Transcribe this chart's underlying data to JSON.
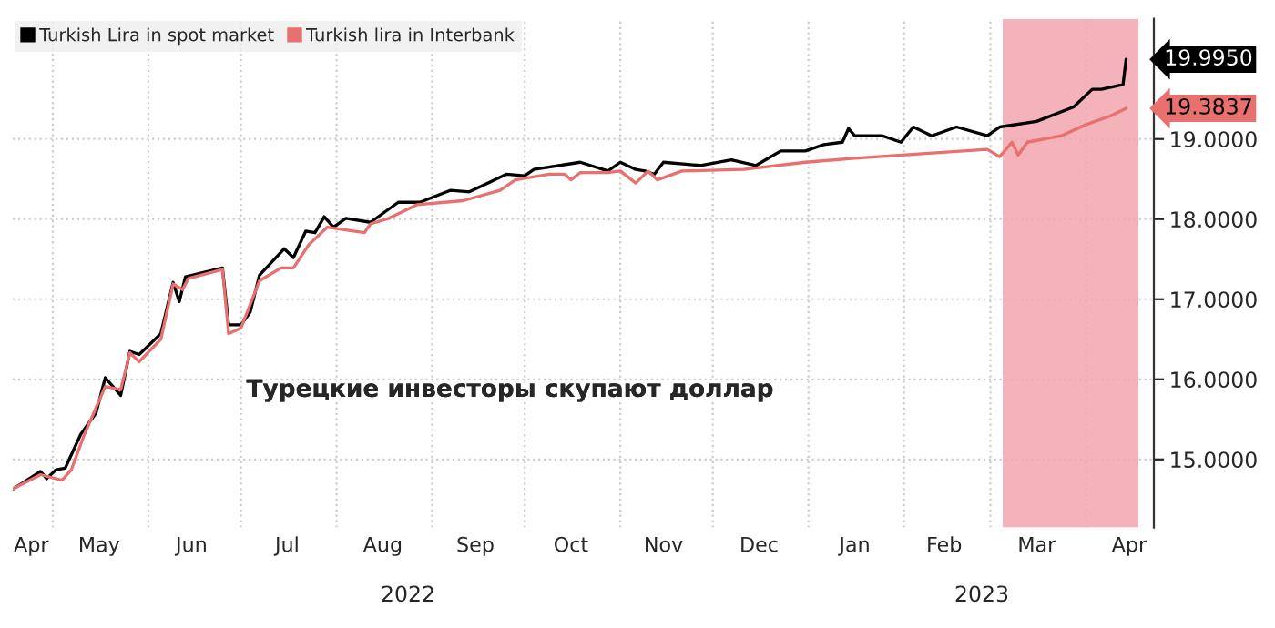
{
  "chart_data": {
    "type": "line",
    "x": [
      "2022-04-18",
      "2022-04-21",
      "2022-04-27",
      "2022-04-29",
      "2022-05-02",
      "2022-05-05",
      "2022-05-10",
      "2022-05-15",
      "2022-05-18",
      "2022-05-23",
      "2022-05-26",
      "2022-05-29",
      "2022-06-05",
      "2022-06-09",
      "2022-06-11",
      "2022-06-13",
      "2022-06-25",
      "2022-06-27",
      "2022-07-01",
      "2022-07-04",
      "2022-07-07",
      "2022-07-15",
      "2022-07-18",
      "2022-07-22",
      "2022-07-25",
      "2022-07-28",
      "2022-07-31",
      "2022-08-04",
      "2022-08-12",
      "2022-08-21",
      "2022-08-28",
      "2022-09-07",
      "2022-09-13",
      "2022-09-19",
      "2022-09-25",
      "2022-10-01",
      "2022-10-04",
      "2022-10-19",
      "2022-10-28",
      "2022-11-01",
      "2022-11-06",
      "2022-11-09",
      "2022-11-12",
      "2022-11-15",
      "2022-11-27",
      "2022-12-07",
      "2022-12-15",
      "2022-12-23",
      "2022-12-31",
      "2023-01-06",
      "2023-01-12",
      "2023-01-14",
      "2023-01-16",
      "2023-01-25",
      "2023-01-31",
      "2023-02-04",
      "2023-02-10",
      "2023-02-18",
      "2023-02-28",
      "2023-03-04",
      "2023-03-16",
      "2023-03-28",
      "2023-04-03",
      "2023-04-06",
      "2023-04-13",
      "2023-04-14"
    ],
    "series": [
      {
        "name": "Turkish Lira in spot market",
        "color": "#000000",
        "values": [
          14.63,
          14.7,
          14.85,
          14.76,
          14.87,
          14.89,
          15.31,
          15.58,
          16.02,
          15.8,
          16.35,
          16.31,
          16.57,
          17.21,
          16.97,
          17.28,
          17.39,
          16.68,
          16.68,
          16.84,
          17.3,
          17.63,
          17.52,
          17.85,
          17.83,
          18.03,
          17.9,
          18.01,
          17.96,
          18.21,
          18.21,
          18.36,
          18.34,
          18.45,
          18.56,
          18.54,
          18.62,
          18.71,
          18.6,
          18.71,
          18.62,
          18.6,
          18.56,
          18.71,
          18.67,
          18.74,
          18.67,
          18.85,
          18.85,
          18.93,
          18.96,
          19.13,
          19.04,
          19.04,
          18.96,
          19.15,
          19.04,
          19.15,
          19.04,
          19.15,
          19.22,
          19.4,
          19.62,
          19.62,
          19.68,
          19.995
        ],
        "value_labels": [
          null,
          null,
          null,
          null,
          null,
          null,
          null,
          null,
          null,
          null,
          null,
          null,
          null,
          null,
          null,
          null,
          null,
          null,
          null,
          null,
          null,
          null,
          null,
          null,
          null,
          null,
          null,
          null,
          null,
          null,
          null,
          null,
          null,
          null,
          null,
          null,
          null,
          null,
          null,
          null,
          null,
          null,
          null,
          null,
          null,
          null,
          null,
          null,
          null,
          null,
          null,
          null,
          null,
          null,
          null,
          null,
          null,
          null,
          null,
          null,
          null,
          null,
          null,
          null,
          null,
          "19.9950"
        ]
      },
      {
        "name": "Turkish lira in Interbank",
        "color": "#e8706f",
        "x": [
          "2022-04-18",
          "2022-04-27",
          "2022-05-04",
          "2022-05-07",
          "2022-05-11",
          "2022-05-18",
          "2022-05-23",
          "2022-05-26",
          "2022-05-29",
          "2022-06-05",
          "2022-06-09",
          "2022-06-12",
          "2022-06-14",
          "2022-06-25",
          "2022-06-27",
          "2022-07-01",
          "2022-07-07",
          "2022-07-14",
          "2022-07-18",
          "2022-07-23",
          "2022-07-29",
          "2022-08-10",
          "2022-08-12",
          "2022-08-18",
          "2022-08-27",
          "2022-09-11",
          "2022-09-23",
          "2022-09-28",
          "2022-10-09",
          "2022-10-14",
          "2022-10-16",
          "2022-10-19",
          "2022-10-28",
          "2022-11-01",
          "2022-11-06",
          "2022-11-10",
          "2022-11-13",
          "2022-11-21",
          "2022-12-11",
          "2022-12-31",
          "2023-01-16",
          "2023-02-08",
          "2023-02-28",
          "2023-03-04",
          "2023-03-08",
          "2023-03-10",
          "2023-03-13",
          "2023-03-24",
          "2023-04-01",
          "2023-04-09",
          "2023-04-14"
        ],
        "values": [
          14.63,
          14.81,
          14.74,
          14.87,
          15.29,
          15.91,
          15.87,
          16.33,
          16.22,
          16.5,
          17.19,
          17.12,
          17.26,
          17.37,
          16.57,
          16.64,
          17.23,
          17.39,
          17.39,
          17.68,
          17.9,
          17.83,
          17.94,
          18.01,
          18.18,
          18.23,
          18.36,
          18.49,
          18.56,
          18.56,
          18.49,
          18.58,
          18.58,
          18.6,
          18.45,
          18.6,
          18.49,
          18.6,
          18.62,
          18.71,
          18.76,
          18.82,
          18.87,
          18.78,
          18.96,
          18.8,
          18.96,
          19.04,
          19.18,
          19.29,
          19.3837
        ],
        "value_labels": [
          null,
          null,
          null,
          null,
          null,
          null,
          null,
          null,
          null,
          null,
          null,
          null,
          null,
          null,
          null,
          null,
          null,
          null,
          null,
          null,
          null,
          null,
          null,
          null,
          null,
          null,
          null,
          null,
          null,
          null,
          null,
          null,
          null,
          null,
          null,
          null,
          null,
          null,
          null,
          null,
          null,
          null,
          null,
          null,
          null,
          null,
          null,
          null,
          null,
          null,
          "19.3837"
        ]
      }
    ],
    "xlim": [
      "2022-04-18",
      "2023-04-23"
    ],
    "xticks": [
      {
        "value": "2022-05-01",
        "label": null
      },
      {
        "value": "2022-06-01",
        "label": null
      },
      {
        "value": "2022-07-01",
        "label": null
      },
      {
        "value": "2022-08-01",
        "label": null
      },
      {
        "value": "2022-09-01",
        "label": null
      },
      {
        "value": "2022-10-01",
        "label": null
      },
      {
        "value": "2022-11-01",
        "label": null
      },
      {
        "value": "2022-12-01",
        "label": null
      },
      {
        "value": "2023-01-01",
        "label": null
      },
      {
        "value": "2023-02-01",
        "label": null
      },
      {
        "value": "2023-03-01",
        "label": null
      },
      {
        "value": "2023-04-01",
        "label": null
      },
      {
        "value": "2022-04-24",
        "label": "Apr"
      },
      {
        "value": "2022-05-16",
        "label": "May"
      },
      {
        "value": "2022-06-15",
        "label": "Jun"
      },
      {
        "value": "2022-07-16",
        "label": "Jul"
      },
      {
        "value": "2022-08-16",
        "label": "Aug"
      },
      {
        "value": "2022-09-15",
        "label": "Sep"
      },
      {
        "value": "2022-10-16",
        "label": "Oct"
      },
      {
        "value": "2022-11-15",
        "label": "Nov"
      },
      {
        "value": "2022-12-16",
        "label": "Dec"
      },
      {
        "value": "2023-01-16",
        "label": "Jan"
      },
      {
        "value": "2023-02-14",
        "label": "Feb"
      },
      {
        "value": "2023-03-16",
        "label": "Mar"
      },
      {
        "value": "2023-04-15",
        "label": "Apr"
      }
    ],
    "ylim": [
      14.15,
      20.5
    ],
    "yticks": [
      {
        "value": 15,
        "label": "15.0000"
      },
      {
        "value": 16,
        "label": "16.0000"
      },
      {
        "value": 17,
        "label": "17.0000"
      },
      {
        "value": 18,
        "label": "18.0000"
      },
      {
        "value": 19,
        "label": "19.0000"
      }
    ],
    "bands": [
      {
        "axis": "x",
        "from": "2023-03-05",
        "to": "2023-04-18",
        "color": "#f2a5ae"
      }
    ],
    "annotations": [
      "2022",
      "2023",
      "Турецкие инвесторы скупают доллар"
    ],
    "grid": true,
    "legend": "top left",
    "line_style": "solid",
    "marker": "none"
  }
}
